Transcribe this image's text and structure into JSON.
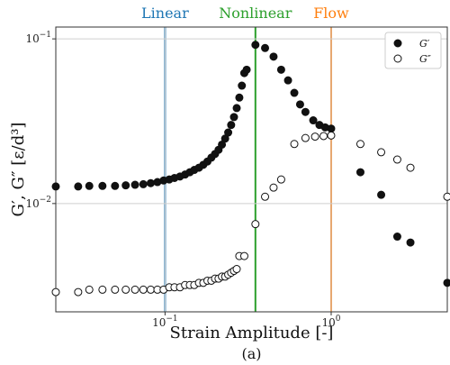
{
  "chart_data": {
    "type": "scatter",
    "xscale": "log",
    "yscale": "log",
    "xlim": [
      0.022,
      5.0
    ],
    "ylim": [
      0.0022,
      0.118
    ],
    "xlabel": "Strain Amplitude [-]",
    "ylabel": "G′, G″ [ε/d³]",
    "xticks": [
      {
        "value": 0.1,
        "base": "10",
        "exp": "−1"
      },
      {
        "value": 1.0,
        "base": "10",
        "exp": "0"
      }
    ],
    "yticks": [
      {
        "value": 0.01,
        "base": "10",
        "exp": "−2"
      },
      {
        "value": 0.1,
        "base": "10",
        "exp": "−1"
      }
    ],
    "grid": true,
    "legend_position": "top-right",
    "regions": [
      {
        "label": "Linear",
        "x": 0.1,
        "color": "#1f77b4"
      },
      {
        "label": "Nonlinear",
        "x": 0.35,
        "color": "#2ca02c"
      },
      {
        "label": "Flow",
        "x": 1.0,
        "color": "#ff7f0e"
      }
    ],
    "caption": "(a)",
    "series": [
      {
        "name": "G′",
        "marker": "filled",
        "points": [
          [
            0.022,
            0.0127
          ],
          [
            0.03,
            0.0127
          ],
          [
            0.035,
            0.0128
          ],
          [
            0.042,
            0.0128
          ],
          [
            0.05,
            0.0128
          ],
          [
            0.058,
            0.0129
          ],
          [
            0.066,
            0.013
          ],
          [
            0.074,
            0.0131
          ],
          [
            0.082,
            0.0133
          ],
          [
            0.09,
            0.0135
          ],
          [
            0.098,
            0.0138
          ],
          [
            0.106,
            0.014
          ],
          [
            0.114,
            0.0143
          ],
          [
            0.123,
            0.0146
          ],
          [
            0.132,
            0.015
          ],
          [
            0.141,
            0.0155
          ],
          [
            0.15,
            0.016
          ],
          [
            0.16,
            0.0165
          ],
          [
            0.17,
            0.0172
          ],
          [
            0.18,
            0.018
          ],
          [
            0.19,
            0.019
          ],
          [
            0.2,
            0.02
          ],
          [
            0.21,
            0.0212
          ],
          [
            0.22,
            0.0228
          ],
          [
            0.23,
            0.0248
          ],
          [
            0.24,
            0.027
          ],
          [
            0.25,
            0.03
          ],
          [
            0.26,
            0.0335
          ],
          [
            0.27,
            0.038
          ],
          [
            0.28,
            0.044
          ],
          [
            0.29,
            0.052
          ],
          [
            0.3,
            0.062
          ],
          [
            0.31,
            0.065
          ],
          [
            0.35,
            0.092
          ],
          [
            0.4,
            0.088
          ],
          [
            0.45,
            0.078
          ],
          [
            0.5,
            0.065
          ],
          [
            0.55,
            0.056
          ],
          [
            0.6,
            0.047
          ],
          [
            0.65,
            0.04
          ],
          [
            0.7,
            0.036
          ],
          [
            0.78,
            0.032
          ],
          [
            0.85,
            0.03
          ],
          [
            0.92,
            0.029
          ],
          [
            1.0,
            0.0285
          ],
          [
            1.5,
            0.0155
          ],
          [
            2.0,
            0.0113
          ],
          [
            2.5,
            0.0063
          ],
          [
            3.0,
            0.0058
          ],
          [
            5.0,
            0.0033
          ]
        ]
      },
      {
        "name": "G″",
        "marker": "hollow",
        "points": [
          [
            0.022,
            0.0029
          ],
          [
            0.03,
            0.0029
          ],
          [
            0.035,
            0.003
          ],
          [
            0.042,
            0.003
          ],
          [
            0.05,
            0.003
          ],
          [
            0.058,
            0.003
          ],
          [
            0.066,
            0.003
          ],
          [
            0.074,
            0.003
          ],
          [
            0.082,
            0.003
          ],
          [
            0.09,
            0.003
          ],
          [
            0.098,
            0.003
          ],
          [
            0.106,
            0.0031
          ],
          [
            0.114,
            0.0031
          ],
          [
            0.123,
            0.0031
          ],
          [
            0.132,
            0.0032
          ],
          [
            0.141,
            0.0032
          ],
          [
            0.15,
            0.0032
          ],
          [
            0.16,
            0.0033
          ],
          [
            0.17,
            0.0033
          ],
          [
            0.18,
            0.0034
          ],
          [
            0.19,
            0.0034
          ],
          [
            0.2,
            0.0035
          ],
          [
            0.21,
            0.0035
          ],
          [
            0.22,
            0.0036
          ],
          [
            0.23,
            0.0036
          ],
          [
            0.24,
            0.0037
          ],
          [
            0.25,
            0.0038
          ],
          [
            0.26,
            0.0039
          ],
          [
            0.27,
            0.004
          ],
          [
            0.28,
            0.0048
          ],
          [
            0.3,
            0.0048
          ],
          [
            0.35,
            0.0075
          ],
          [
            0.4,
            0.011
          ],
          [
            0.45,
            0.0125
          ],
          [
            0.5,
            0.014
          ],
          [
            0.6,
            0.023
          ],
          [
            0.7,
            0.025
          ],
          [
            0.8,
            0.0255
          ],
          [
            0.9,
            0.0257
          ],
          [
            1.0,
            0.0259
          ],
          [
            1.5,
            0.023
          ],
          [
            2.0,
            0.0205
          ],
          [
            2.5,
            0.0185
          ],
          [
            3.0,
            0.0165
          ],
          [
            5.0,
            0.011
          ]
        ]
      }
    ]
  }
}
